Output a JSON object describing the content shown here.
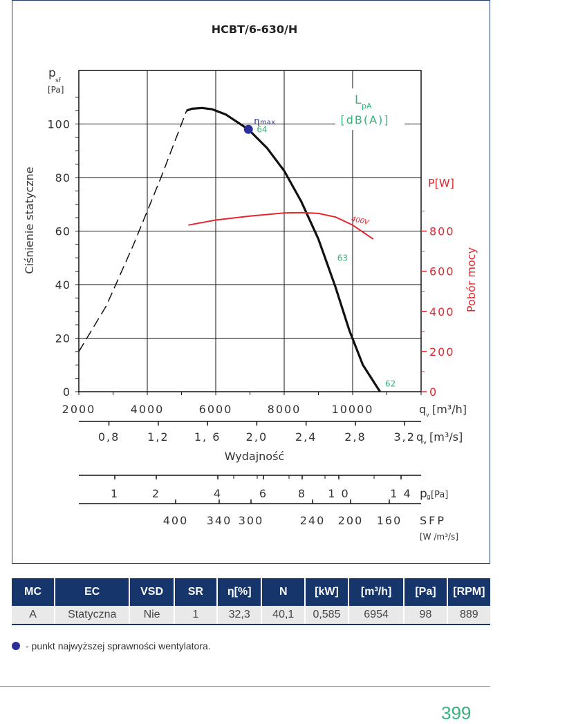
{
  "chart_data": {
    "type": "line",
    "title": "HCBT/6-630/H",
    "ylabel": "Ciśnienie statyczne",
    "ylabel_symbol": "p",
    "ylabel_sub": "sf",
    "ylabel_unit": "[Pa]",
    "xlabel": "Wydajność",
    "x_unit": "[m³/h]",
    "x_unit_secondary": "[m³/s]",
    "x_symbol": "q",
    "x_sub": "v",
    "xlim": [
      2000,
      12000
    ],
    "ylim": [
      0,
      120
    ],
    "x_ticks": [
      2000,
      4000,
      6000,
      8000,
      10000
    ],
    "x_tick_labels": [
      "2000",
      "4000",
      "6000",
      "8000",
      "10000"
    ],
    "y_ticks": [
      0,
      20,
      40,
      60,
      80,
      100
    ],
    "y_tick_labels": [
      "0",
      "20",
      "40",
      "60",
      "80",
      "100"
    ],
    "x2_ticks": [
      0.8,
      1.2,
      1.6,
      2.0,
      2.4,
      2.8,
      3.2
    ],
    "x2_tick_labels": [
      "0,8",
      "1,2",
      "1, 6",
      "2,0",
      "2,4",
      "2,8",
      "3,2"
    ],
    "power_axis": {
      "label": "Pobór mocy",
      "unit_label": "P[W]",
      "ticks": [
        0,
        200,
        400,
        600,
        800
      ],
      "tick_labels": [
        "0",
        "200",
        "400",
        "600",
        "800"
      ],
      "range": [
        0,
        1600
      ]
    },
    "pg_axis": {
      "label": "p",
      "sub": "g",
      "unit": "[Pa]",
      "ticks": [
        1,
        2,
        4,
        6,
        8,
        10,
        14
      ],
      "tick_labels": [
        "1",
        "2",
        "4",
        "6",
        "8",
        "1 0",
        "1 4"
      ]
    },
    "sfp_axis": {
      "label": "SFP",
      "unit": "[W /m³/s]",
      "tick_labels": [
        "400",
        "340",
        "300",
        "240",
        "200",
        "160"
      ]
    },
    "lpa_label": "L",
    "lpa_sub": "pA",
    "lpa_unit": "[dB(A)]",
    "eta_max_label": "η",
    "eta_max_sub": "max",
    "series": [
      {
        "name": "pressure",
        "style": "solid",
        "color": "#111111",
        "x": [
          5150,
          5300,
          5600,
          5900,
          6300,
          6954,
          7500,
          8000,
          8500,
          9000,
          9500,
          9900,
          10300,
          10800
        ],
        "y": [
          105,
          105.7,
          106,
          105.5,
          103.5,
          98,
          91,
          82.5,
          71,
          57,
          39,
          23,
          10,
          0
        ]
      },
      {
        "name": "pressure-unstable",
        "style": "dashed",
        "color": "#111111",
        "x": [
          2000,
          2800,
          3600,
          4400,
          5150
        ],
        "y": [
          15,
          32,
          55,
          80,
          105
        ]
      },
      {
        "name": "400V",
        "axis": "power",
        "color": "#e3262e",
        "x": [
          5200,
          6000,
          7000,
          8000,
          8500,
          9000,
          9500,
          10000,
          10600
        ],
        "y": [
          830,
          855,
          875,
          890,
          892,
          888,
          870,
          830,
          760
        ]
      }
    ],
    "lpa_points": [
      {
        "label": "64",
        "x": 7200,
        "y": 98
      },
      {
        "label": "63",
        "x": 9550,
        "y": 50
      },
      {
        "label": "62",
        "x": 10950,
        "y": 3
      }
    ],
    "eta_max_point": {
      "x": 6954,
      "y": 98,
      "color": "#2a2f9a"
    },
    "power_series_label": "400V"
  },
  "table": {
    "headers": [
      "MC",
      "EC",
      "VSD",
      "SR",
      "η[%]",
      "N",
      "[kW]",
      "[m³/h]",
      "[Pa]",
      "[RPM]"
    ],
    "row": [
      "A",
      "Statyczna",
      "Nie",
      "1",
      "32,3",
      "40,1",
      "0,585",
      "6954",
      "98",
      "889"
    ]
  },
  "footnote": "- punkt najwyższej sprawności wentylatora.",
  "page_number": "399",
  "colors": {
    "navy": "#15356b",
    "red": "#e3262e",
    "green": "#37b27a",
    "marker": "#2a2f9a"
  }
}
